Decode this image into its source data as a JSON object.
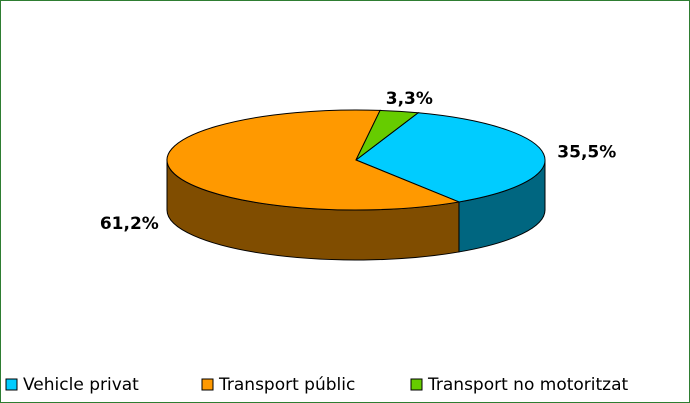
{
  "chart_data": {
    "type": "pie3d",
    "categories": [
      "Vehicle privat",
      "Transport públic",
      "Transport no motoritzat"
    ],
    "values": [
      35.5,
      61.2,
      3.3
    ],
    "value_labels": [
      "35,5%",
      "61,2%",
      "3,3%"
    ],
    "colors": [
      "#00ccff",
      "#ff9900",
      "#66cc00"
    ],
    "legend": "bottom"
  }
}
